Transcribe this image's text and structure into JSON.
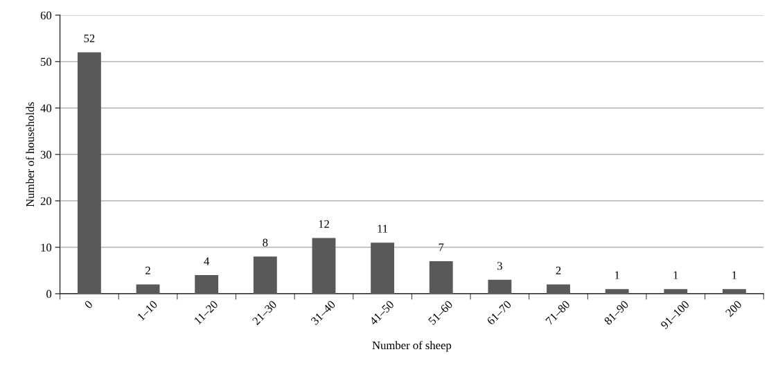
{
  "chart_data": {
    "type": "bar",
    "xlabel": "Number of sheep",
    "ylabel": "Number of households",
    "categories": [
      "0",
      "1–10",
      "11–20",
      "21–30",
      "31–40",
      "41–50",
      "51–60",
      "61–70",
      "71–80",
      "81–90",
      "91–100",
      "200"
    ],
    "values": [
      52,
      2,
      4,
      8,
      12,
      11,
      7,
      3,
      2,
      1,
      1,
      1
    ],
    "color": "#595959",
    "ylim": [
      0,
      60
    ],
    "yticks": [
      0,
      10,
      20,
      30,
      40,
      50,
      60
    ],
    "grid": "y",
    "data_labels": true
  }
}
